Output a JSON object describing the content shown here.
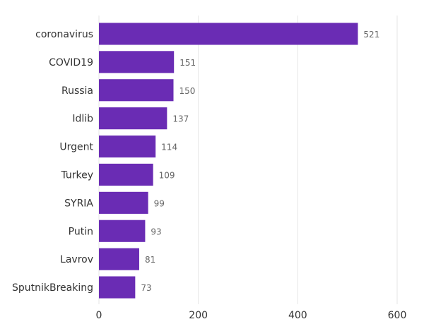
{
  "chart_data": {
    "type": "bar",
    "orientation": "horizontal",
    "title": "",
    "xlabel": "",
    "ylabel": "",
    "categories": [
      "coronavirus",
      "COVID19",
      "Russia",
      "Idlib",
      "Urgent",
      "Turkey",
      "SYRIA",
      "Putin",
      "Lavrov",
      "SputnikBreaking"
    ],
    "values": [
      521,
      151,
      150,
      137,
      114,
      109,
      99,
      93,
      81,
      73
    ],
    "xlim": [
      0,
      600
    ],
    "xticks": [
      0,
      200,
      400,
      600
    ],
    "grid": "vertical",
    "legend": "none",
    "bar_color": "#6a2cb4"
  }
}
